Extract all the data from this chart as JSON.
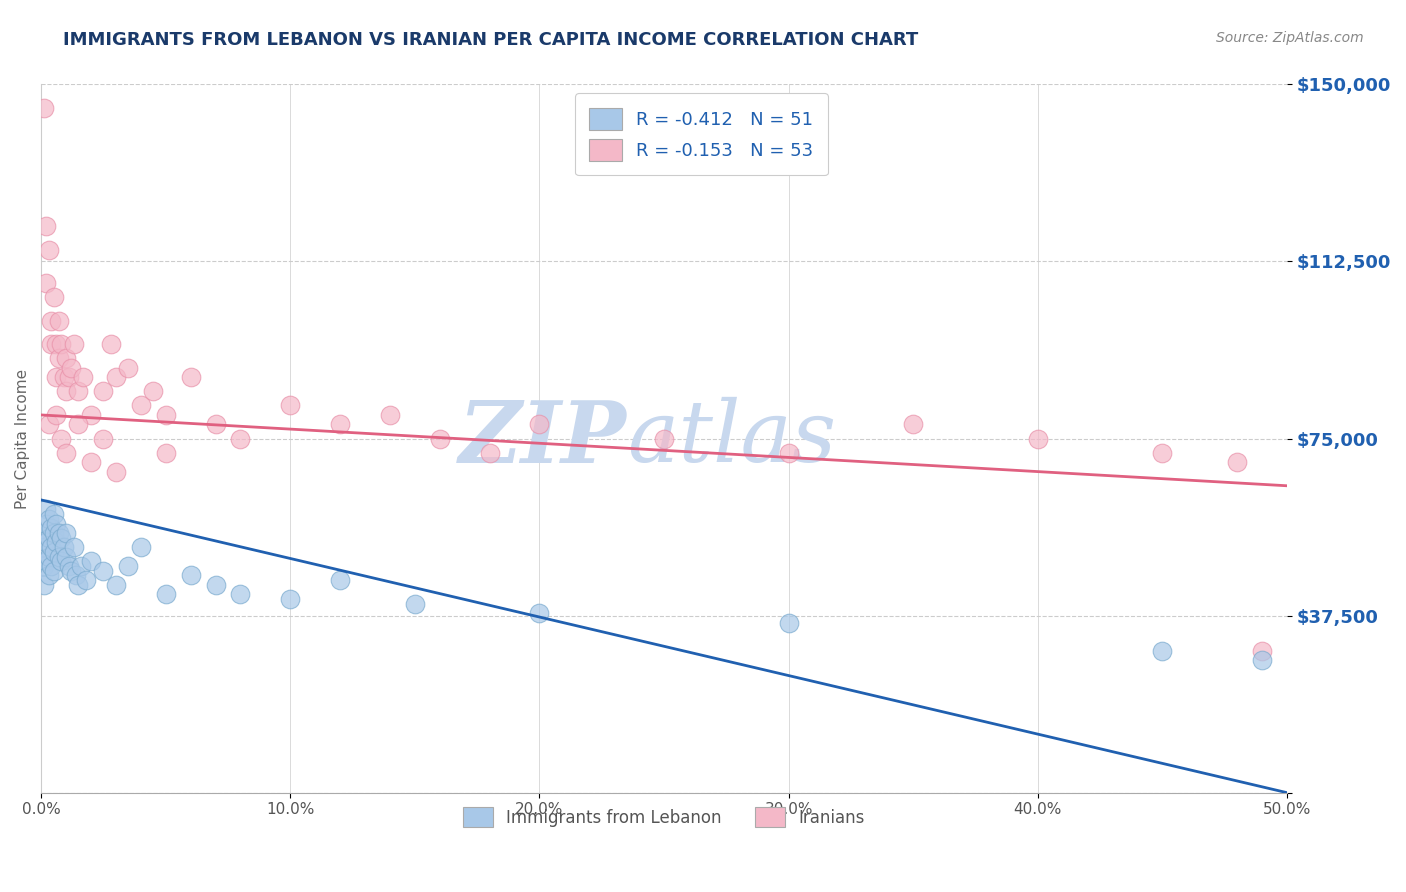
{
  "title": "IMMIGRANTS FROM LEBANON VS IRANIAN PER CAPITA INCOME CORRELATION CHART",
  "source_text": "Source: ZipAtlas.com",
  "ylabel": "Per Capita Income",
  "xlim": [
    0.0,
    0.5
  ],
  "ylim": [
    0,
    150000
  ],
  "yticks": [
    0,
    37500,
    75000,
    112500,
    150000
  ],
  "ytick_labels": [
    "",
    "$37,500",
    "$75,000",
    "$112,500",
    "$150,000"
  ],
  "xticks": [
    0.0,
    0.1,
    0.2,
    0.3,
    0.4,
    0.5
  ],
  "xtick_labels": [
    "0.0%",
    "10.0%",
    "20.0%",
    "30.0%",
    "40.0%",
    "50.0%"
  ],
  "legend1_label": "R = -0.412   N = 51",
  "legend2_label": "R = -0.153   N = 53",
  "legend_bottom_label1": "Immigrants from Lebanon",
  "legend_bottom_label2": "Iranians",
  "blue_color": "#a8c8e8",
  "pink_color": "#f4b8c8",
  "blue_edge_color": "#7aaace",
  "pink_edge_color": "#e890a8",
  "blue_line_color": "#2060b0",
  "pink_line_color": "#e06080",
  "title_color": "#1a3a6a",
  "axis_label_color": "#666666",
  "tick_color": "#2060b0",
  "grid_color": "#cccccc",
  "watermark_color": "#c8d8ee",
  "source_color": "#888888",
  "blue_line_y0": 62000,
  "blue_line_y1": 0,
  "pink_line_y0": 80000,
  "pink_line_y1": 65000,
  "blue_scatter_x": [
    0.001,
    0.001,
    0.001,
    0.001,
    0.002,
    0.002,
    0.002,
    0.002,
    0.003,
    0.003,
    0.003,
    0.003,
    0.004,
    0.004,
    0.004,
    0.005,
    0.005,
    0.005,
    0.005,
    0.006,
    0.006,
    0.007,
    0.007,
    0.008,
    0.008,
    0.009,
    0.01,
    0.01,
    0.011,
    0.012,
    0.013,
    0.014,
    0.015,
    0.016,
    0.018,
    0.02,
    0.025,
    0.03,
    0.035,
    0.04,
    0.05,
    0.06,
    0.07,
    0.08,
    0.1,
    0.12,
    0.15,
    0.2,
    0.3,
    0.45,
    0.49
  ],
  "blue_scatter_y": [
    55000,
    52000,
    48000,
    44000,
    60000,
    57000,
    53000,
    49000,
    58000,
    54000,
    50000,
    46000,
    56000,
    52000,
    48000,
    59000,
    55000,
    51000,
    47000,
    57000,
    53000,
    55000,
    50000,
    54000,
    49000,
    52000,
    55000,
    50000,
    48000,
    47000,
    52000,
    46000,
    44000,
    48000,
    45000,
    49000,
    47000,
    44000,
    48000,
    52000,
    42000,
    46000,
    44000,
    42000,
    41000,
    45000,
    40000,
    38000,
    36000,
    30000,
    28000
  ],
  "pink_scatter_x": [
    0.001,
    0.002,
    0.002,
    0.003,
    0.004,
    0.004,
    0.005,
    0.006,
    0.006,
    0.007,
    0.007,
    0.008,
    0.009,
    0.01,
    0.01,
    0.011,
    0.012,
    0.013,
    0.015,
    0.017,
    0.02,
    0.025,
    0.028,
    0.03,
    0.035,
    0.04,
    0.045,
    0.05,
    0.06,
    0.07,
    0.08,
    0.1,
    0.12,
    0.14,
    0.16,
    0.18,
    0.2,
    0.25,
    0.3,
    0.35,
    0.4,
    0.45,
    0.48,
    0.003,
    0.006,
    0.008,
    0.01,
    0.015,
    0.02,
    0.025,
    0.03,
    0.05,
    0.49
  ],
  "pink_scatter_y": [
    145000,
    120000,
    108000,
    115000,
    100000,
    95000,
    105000,
    95000,
    88000,
    100000,
    92000,
    95000,
    88000,
    85000,
    92000,
    88000,
    90000,
    95000,
    85000,
    88000,
    80000,
    85000,
    95000,
    88000,
    90000,
    82000,
    85000,
    80000,
    88000,
    78000,
    75000,
    82000,
    78000,
    80000,
    75000,
    72000,
    78000,
    75000,
    72000,
    78000,
    75000,
    72000,
    70000,
    78000,
    80000,
    75000,
    72000,
    78000,
    70000,
    75000,
    68000,
    72000,
    30000
  ]
}
